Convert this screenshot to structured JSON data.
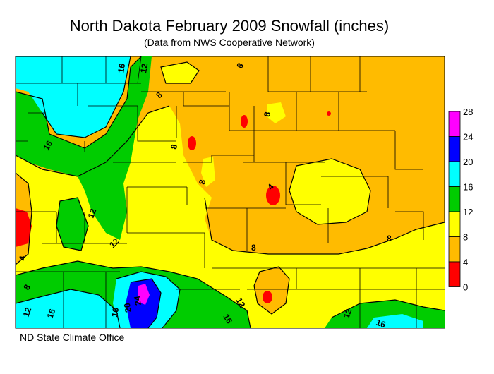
{
  "title": "North Dakota February 2009 Snowfall (inches)",
  "subtitle": "(Data from NWS Cooperative Network)",
  "footer": "ND State Climate Office",
  "legend": {
    "levels": [
      {
        "label": "28",
        "color": "#ff00ff"
      },
      {
        "label": "24",
        "color": "#0000ff"
      },
      {
        "label": "20",
        "color": "#00ffff"
      },
      {
        "label": "16",
        "color": "#00cc00"
      },
      {
        "label": "12",
        "color": "#ffff00"
      },
      {
        "label": "8",
        "color": "#ffbb00"
      },
      {
        "label": "4",
        "color": "#ff0000"
      },
      {
        "label": "0",
        "color": "#ffffff"
      }
    ]
  },
  "colors": {
    "band_0_4": "#ff0000",
    "band_4_8": "#ffbb00",
    "band_8_12": "#ffff00",
    "band_12_16": "#00cc00",
    "band_16_20": "#00ffff",
    "band_20_24": "#0000ff",
    "band_24_28": "#ff00ff"
  },
  "contour_labels": [
    "16",
    "12",
    "8",
    "8",
    "8",
    "8",
    "8",
    "4",
    "16",
    "12",
    "12",
    "4",
    "8",
    "12",
    "16",
    "16",
    "20",
    "24",
    "16",
    "12",
    "8",
    "8",
    "12",
    "16"
  ]
}
